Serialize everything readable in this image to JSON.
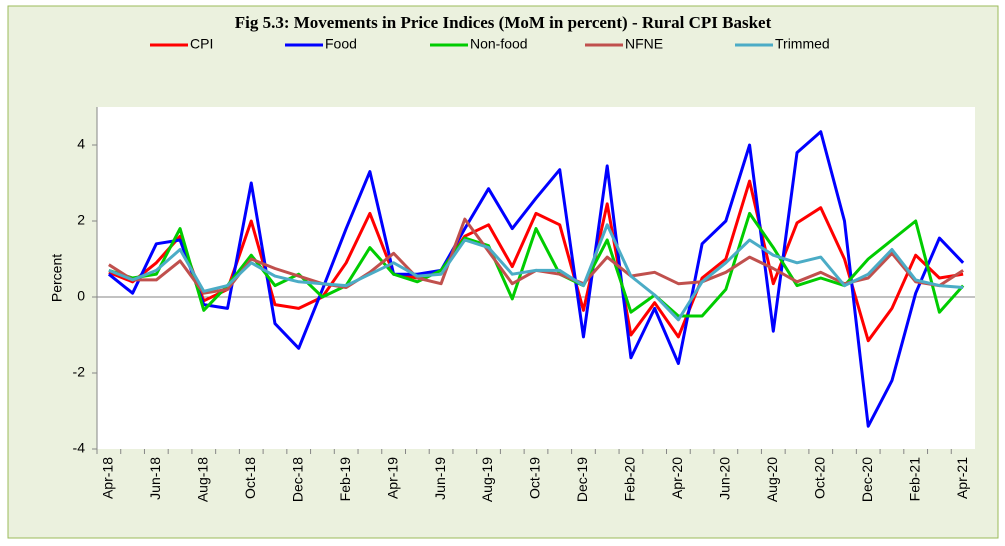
{
  "chart_data": {
    "type": "line",
    "title": "Fig 5.3: Movements in Price Indices (MoM in percent) - Rural CPI Basket",
    "y_label": "Percent",
    "categories": [
      "Apr-18",
      null,
      "Jun-18",
      null,
      "Aug-18",
      null,
      "Oct-18",
      null,
      "Dec-18",
      null,
      "Feb-19",
      null,
      "Apr-19",
      null,
      "Jun-19",
      null,
      "Aug-19",
      null,
      "Oct-19",
      null,
      "Dec-19",
      null,
      "Feb-20",
      null,
      "Apr-20",
      null,
      "Jun-20",
      null,
      "Aug-20",
      null,
      "Oct-20",
      null,
      "Dec-20",
      null,
      "Feb-21",
      null,
      "Apr-21"
    ],
    "series": [
      {
        "name": "CPI",
        "color": "#ff0000",
        "values": [
          0.65,
          0.4,
          0.9,
          1.6,
          -0.1,
          0.2,
          2.0,
          -0.2,
          -0.3,
          0.0,
          0.9,
          2.2,
          0.6,
          0.5,
          0.7,
          1.6,
          1.9,
          0.8,
          2.2,
          1.9,
          -0.35,
          2.45,
          -1.0,
          -0.15,
          -1.05,
          0.5,
          1.0,
          3.05,
          0.35,
          1.95,
          2.35,
          1.0,
          -1.15,
          -0.3,
          1.1,
          0.5,
          0.6
        ]
      },
      {
        "name": "Food",
        "color": "#0000ff",
        "values": [
          0.6,
          0.1,
          1.4,
          1.5,
          -0.2,
          -0.3,
          3.0,
          -0.7,
          -1.35,
          0.2,
          1.8,
          3.3,
          0.6,
          0.6,
          0.7,
          1.8,
          2.85,
          1.8,
          2.6,
          3.35,
          -1.05,
          3.45,
          -1.6,
          -0.3,
          -1.75,
          1.4,
          2.0,
          4.0,
          -0.9,
          3.8,
          4.35,
          2.0,
          -3.4,
          -2.2,
          0.1,
          1.55,
          0.9
        ]
      },
      {
        "name": "Non-food",
        "color": "#00cc00",
        "values": [
          0.7,
          0.5,
          0.6,
          1.8,
          -0.35,
          0.3,
          1.1,
          0.3,
          0.6,
          0.0,
          0.3,
          1.3,
          0.6,
          0.4,
          0.7,
          1.55,
          1.35,
          -0.05,
          1.8,
          0.6,
          0.3,
          1.5,
          -0.4,
          0.05,
          -0.5,
          -0.5,
          0.2,
          2.2,
          1.3,
          0.3,
          0.5,
          0.3,
          1.0,
          1.5,
          2.0,
          -0.4,
          0.3
        ]
      },
      {
        "name": "NFNE",
        "color": "#c0504d",
        "values": [
          0.85,
          0.45,
          0.45,
          0.95,
          0.1,
          0.2,
          1.0,
          0.75,
          0.55,
          0.35,
          0.25,
          0.65,
          1.15,
          0.5,
          0.35,
          2.05,
          1.2,
          0.35,
          0.7,
          0.6,
          0.35,
          1.05,
          0.55,
          0.65,
          0.35,
          0.4,
          0.65,
          1.05,
          0.75,
          0.4,
          0.65,
          0.35,
          0.5,
          1.15,
          0.4,
          0.3,
          0.7
        ]
      },
      {
        "name": "Trimmed",
        "color": "#4bacc6",
        "values": [
          0.7,
          0.45,
          0.7,
          1.25,
          0.15,
          0.3,
          0.9,
          0.55,
          0.4,
          0.35,
          0.3,
          0.6,
          0.9,
          0.55,
          0.6,
          1.5,
          1.3,
          0.6,
          0.7,
          0.7,
          0.3,
          1.9,
          0.55,
          0.05,
          -0.6,
          0.4,
          0.9,
          1.5,
          1.1,
          0.9,
          1.05,
          0.3,
          0.6,
          1.25,
          0.45,
          0.3,
          0.25
        ]
      }
    ],
    "ylim": [
      -4,
      5
    ],
    "yticks": [
      -4,
      -2,
      0,
      2,
      4
    ],
    "grid": false,
    "legend": "top"
  }
}
